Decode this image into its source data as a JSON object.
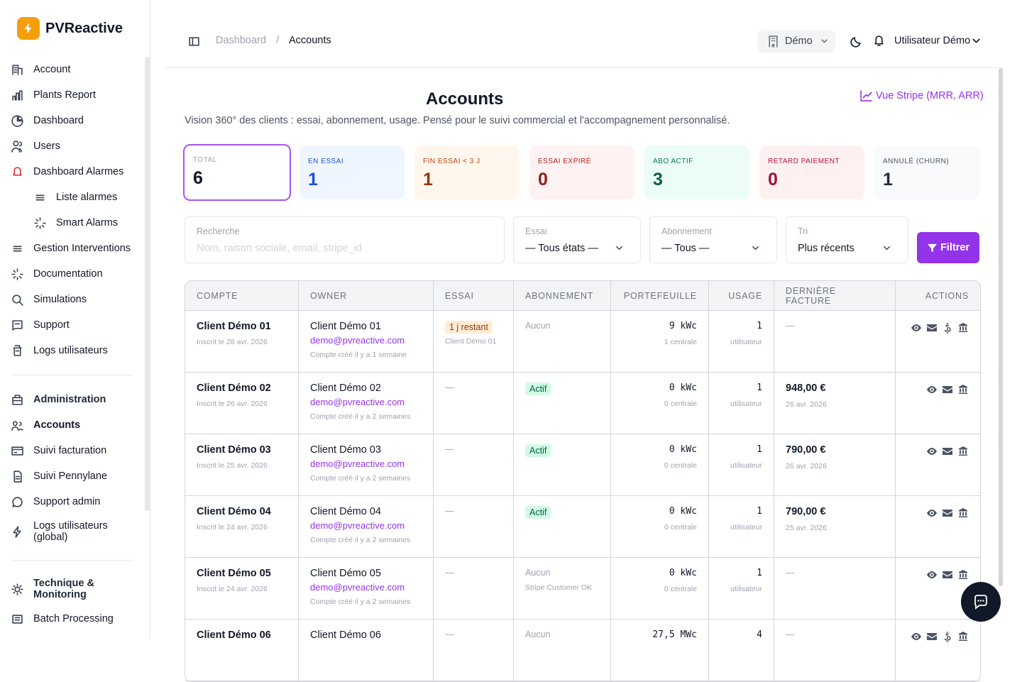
{
  "sidebar": {
    "brand": "PVReactive",
    "main": [
      {
        "label": "Account"
      },
      {
        "label": "Plants Report"
      },
      {
        "label": "Dashboard"
      },
      {
        "label": "Users"
      },
      {
        "label": "Dashboard Alarmes",
        "children": [
          "Liste alarmes",
          "Smart Alarms"
        ]
      },
      {
        "label": "Gestion Interventions"
      },
      {
        "label": "Documentation"
      },
      {
        "label": "Simulations"
      },
      {
        "label": "Support"
      },
      {
        "label": "Logs utilisateurs"
      }
    ],
    "admin": {
      "title": "Administration",
      "items": [
        "Accounts",
        "Suivi facturation",
        "Suivi Pennylane",
        "Support admin",
        "Logs utilisateurs (global)"
      ]
    },
    "technique": {
      "title": "Technique & Monitoring",
      "items": [
        "Batch Processing"
      ]
    }
  },
  "topbar": {
    "breadcrumb": [
      "Dashboard",
      "Accounts"
    ],
    "separator": "/",
    "organization": "Démo",
    "user": "Utilisateur Démo"
  },
  "header": {
    "title": "Accounts",
    "subtitle": "Vision 360° des clients : essai, abonnement, usage. Pensé pour le suivi commercial et l'accompagnement personnalisé.",
    "stripe_link": "Vue Stripe (MRR, ARR)"
  },
  "stats": [
    {
      "label": "TOTAL",
      "value": 6
    },
    {
      "label": "EN ESSAI",
      "value": 1
    },
    {
      "label": "FIN ESSAI < 3 J",
      "value": 1
    },
    {
      "label": "ESSAI EXPIRÉ",
      "value": 0
    },
    {
      "label": "ABO ACTIF",
      "value": 3
    },
    {
      "label": "RETARD PAIEMENT",
      "value": 0
    },
    {
      "label": "ANNULÉ (CHURN)",
      "value": 1
    }
  ],
  "filters": {
    "search": {
      "label": "Recherche",
      "placeholder": "Nom, raison sociale, email, stripe_id"
    },
    "essai": {
      "label": "Essai",
      "value": "— Tous états —"
    },
    "abonnement": {
      "label": "Abonnement",
      "value": "— Tous —"
    },
    "tri": {
      "label": "Tri",
      "value": "Plus récents"
    },
    "button": "Filtrer"
  },
  "table": {
    "headers": [
      "COMPTE",
      "OWNER",
      "ESSAI",
      "ABONNEMENT",
      "PORTEFEUILLE",
      "USAGE",
      "DERNIÈRE FACTURE",
      "ACTIONS"
    ],
    "rows": [
      {
        "compte": "Client Démo 01",
        "inscrit": "Inscrit le 28 avr. 2026",
        "owner": "Client Démo 01",
        "email": "demo@pvreactive.com",
        "created": "Compte créé il y a 1 semaine",
        "essai": {
          "badge": "1 j restant",
          "note": "Client Démo 01"
        },
        "abonnement": {
          "text": "Aucun"
        },
        "portefeuille": "9 kWc",
        "centrales": "1 centrale",
        "usage": 1,
        "usage_unit": "utilisateur",
        "facture": {
          "text": "—"
        }
      },
      {
        "compte": "Client Démo 02",
        "inscrit": "Inscrit le 26 avr. 2026",
        "owner": "Client Démo 02",
        "email": "demo@pvreactive.com",
        "created": "Compte créé il y a 2 semaines",
        "essai": {
          "text": "—"
        },
        "abonnement": {
          "badge": "Actif"
        },
        "portefeuille": "0 kWc",
        "centrales": "0 centrale",
        "usage": 1,
        "usage_unit": "utilisateur",
        "facture": {
          "amount": "948,00 €",
          "date": "26 avr. 2026"
        }
      },
      {
        "compte": "Client Démo 03",
        "inscrit": "Inscrit le 25 avr. 2026",
        "owner": "Client Démo 03",
        "email": "demo@pvreactive.com",
        "created": "Compte créé il y a 2 semaines",
        "essai": {
          "text": "—"
        },
        "abonnement": {
          "badge": "Actif"
        },
        "portefeuille": "0 kWc",
        "centrales": "0 centrale",
        "usage": 1,
        "usage_unit": "utilisateur",
        "facture": {
          "amount": "790,00 €",
          "date": "26 avr. 2026"
        }
      },
      {
        "compte": "Client Démo 04",
        "inscrit": "Inscrit le 24 avr. 2026",
        "owner": "Client Démo 04",
        "email": "demo@pvreactive.com",
        "created": "Compte créé il y a 2 semaines",
        "essai": {
          "text": "—"
        },
        "abonnement": {
          "badge": "Actif"
        },
        "portefeuille": "0 kWc",
        "centrales": "0 centrale",
        "usage": 1,
        "usage_unit": "utilisateur",
        "facture": {
          "amount": "790,00 €",
          "date": "25 avr. 2026"
        }
      },
      {
        "compte": "Client Démo 05",
        "inscrit": "Inscrit le 24 avr. 2026",
        "owner": "Client Démo 05",
        "email": "demo@pvreactive.com",
        "created": "Compte créé il y a 2 semaines",
        "essai": {
          "text": "—"
        },
        "abonnement": {
          "text": "Aucun",
          "note": "Stripe Customer OK"
        },
        "portefeuille": "0 kWc",
        "centrales": "0 centrale",
        "usage": 1,
        "usage_unit": "utilisateur",
        "facture": {
          "text": "—"
        }
      },
      {
        "compte": "Client Démo 06",
        "owner": "Client Démo 06",
        "essai": {
          "text": "—"
        },
        "abonnement": {
          "text": "Aucun"
        },
        "portefeuille": "27,5 MWc",
        "usage": 4,
        "facture": {
          "text": "—"
        }
      }
    ]
  }
}
